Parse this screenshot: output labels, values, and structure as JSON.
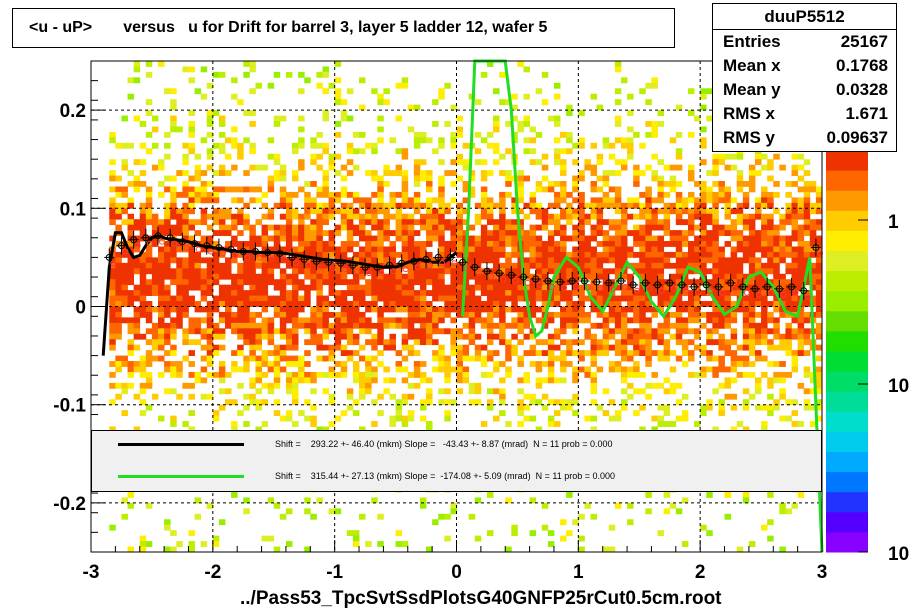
{
  "title": "<u - uP>       versus   u for Drift for barrel 3, layer 5 ladder 12, wafer 5",
  "xlabel": "../Pass53_TpcSvtSsdPlotsG40GNFP25rCut0.5cm.root",
  "stats": {
    "name": "duuP5512",
    "rows": [
      {
        "label": "Entries",
        "value": "25167"
      },
      {
        "label": "Mean x",
        "value": "0.1768"
      },
      {
        "label": "Mean y",
        "value": "0.0328"
      },
      {
        "label": "RMS x",
        "value": "1.671"
      },
      {
        "label": "RMS y",
        "value": "0.09637"
      }
    ]
  },
  "legend": [
    {
      "color": "#000000",
      "text": "Shift =    293.22 +- 46.40 (mkm) Slope =   -43.43 +- 8.87 (mrad)  N = 11 prob = 0.000"
    },
    {
      "color": "#00dd00",
      "text": "Shift =    315.44 +- 27.13 (mkm) Slope =  -174.08 +- 5.09 (mrad)  N = 11 prob = 0.000"
    }
  ],
  "colors": {
    "black_fit": "#000000",
    "green_fit": "#22dd22",
    "points": "#000000",
    "points_alt": "#ff3b3b"
  },
  "chart_data": {
    "type": "heatmap",
    "xlim": [
      -3,
      3
    ],
    "ylim": [
      -0.25,
      0.25
    ],
    "x_ticks": [
      -3,
      -2,
      -1,
      0,
      1,
      2,
      3
    ],
    "x_tick_labels": [
      "-3",
      "-2",
      "-1",
      "0",
      "1",
      "2",
      "3"
    ],
    "y_ticks": [
      -0.2,
      -0.1,
      0,
      0.1,
      0.2
    ],
    "y_tick_labels": [
      "-0.2",
      "-0.1",
      "0",
      "0.1",
      "0.2"
    ],
    "grid": true,
    "colorbar": {
      "scale": "log",
      "labels": [
        "1",
        "10",
        "10"
      ]
    },
    "profile_points": {
      "x": [
        -2.85,
        -2.75,
        -2.65,
        -2.55,
        -2.45,
        -2.35,
        -2.25,
        -2.15,
        -2.05,
        -1.95,
        -1.85,
        -1.75,
        -1.65,
        -1.55,
        -1.45,
        -1.35,
        -1.25,
        -1.15,
        -1.05,
        -0.95,
        -0.85,
        -0.75,
        -0.65,
        -0.55,
        -0.45,
        -0.35,
        -0.25,
        -0.15,
        -0.05,
        0.05,
        0.15,
        0.25,
        0.35,
        0.45,
        0.55,
        0.65,
        0.75,
        0.85,
        0.95,
        1.05,
        1.15,
        1.25,
        1.35,
        1.45,
        1.55,
        1.65,
        1.75,
        1.85,
        1.95,
        2.05,
        2.15,
        2.25,
        2.35,
        2.45,
        2.55,
        2.65,
        2.75,
        2.85,
        2.95
      ],
      "y": [
        0.05,
        0.062,
        0.068,
        0.07,
        0.072,
        0.07,
        0.066,
        0.064,
        0.062,
        0.06,
        0.058,
        0.056,
        0.056,
        0.055,
        0.054,
        0.05,
        0.048,
        0.046,
        0.045,
        0.044,
        0.042,
        0.04,
        0.04,
        0.042,
        0.044,
        0.046,
        0.048,
        0.05,
        0.05,
        0.045,
        0.04,
        0.036,
        0.034,
        0.032,
        0.03,
        0.028,
        0.026,
        0.025,
        0.026,
        0.026,
        0.025,
        0.024,
        0.026,
        0.022,
        0.024,
        0.022,
        0.024,
        0.022,
        0.02,
        0.022,
        0.02,
        0.024,
        0.02,
        0.018,
        0.02,
        0.018,
        0.02,
        0.016,
        0.06
      ]
    },
    "series": [
      {
        "x": [
          -2.9,
          -2.85,
          -2.8,
          -2.75,
          -2.7,
          -2.65,
          -2.6,
          -2.55,
          -2.5,
          -2.45,
          -2.4,
          -2.35,
          -2.3,
          -2.2,
          -2.1,
          -2.0,
          -1.9,
          -1.8,
          -1.7,
          -1.6,
          -1.5,
          -1.4,
          -1.3,
          -1.2,
          -1.1,
          -1.0,
          -0.9,
          -0.8,
          -0.7,
          -0.6,
          -0.5,
          -0.4,
          -0.3,
          -0.2,
          -0.1,
          0.0
        ],
        "y": [
          -0.05,
          0.04,
          0.075,
          0.075,
          0.06,
          0.05,
          0.052,
          0.062,
          0.07,
          0.072,
          0.07,
          0.068,
          0.068,
          0.066,
          0.062,
          0.06,
          0.058,
          0.056,
          0.056,
          0.055,
          0.055,
          0.054,
          0.052,
          0.05,
          0.048,
          0.047,
          0.046,
          0.044,
          0.042,
          0.04,
          0.04,
          0.045,
          0.048,
          0.045,
          0.045,
          0.055
        ]
      },
      {
        "x": [
          0.05,
          0.1,
          0.15,
          0.2,
          0.25,
          0.3,
          0.35,
          0.4,
          0.45,
          0.5,
          0.55,
          0.6,
          0.65,
          0.7,
          0.75,
          0.8,
          0.9,
          1.0,
          1.1,
          1.2,
          1.3,
          1.4,
          1.5,
          1.6,
          1.7,
          1.8,
          1.9,
          2.0,
          2.1,
          2.2,
          2.3,
          2.4,
          2.5,
          2.6,
          2.7,
          2.8,
          2.85,
          2.9,
          2.95,
          3.0
        ],
        "y": [
          -0.01,
          0.1,
          0.25,
          0.25,
          0.25,
          0.25,
          0.25,
          0.25,
          0.2,
          0.1,
          0.03,
          -0.01,
          -0.03,
          -0.025,
          0.0,
          0.03,
          0.05,
          0.04,
          0.01,
          -0.005,
          0.02,
          0.045,
          0.03,
          0.005,
          -0.01,
          0.01,
          0.04,
          0.035,
          0.01,
          -0.008,
          0.0,
          0.03,
          0.035,
          0.02,
          -0.005,
          -0.01,
          0.02,
          0.05,
          -0.1,
          -0.25
        ]
      }
    ]
  }
}
